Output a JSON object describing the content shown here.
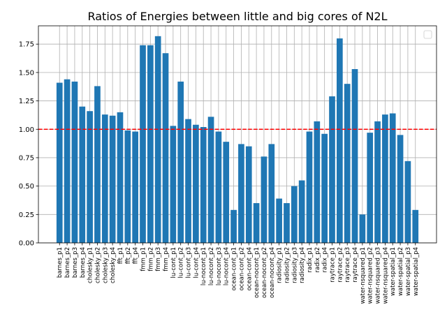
{
  "chart_data": {
    "type": "bar",
    "title": "Ratios of Energies between little and big cores of N2L",
    "categories": [
      "barnes_p1",
      "barnes_p2",
      "barnes_p3",
      "barnes_p4",
      "cholesky_p1",
      "cholesky_p2",
      "cholesky_p3",
      "cholesky_p4",
      "fft_p1",
      "fft_p2",
      "fft_p4",
      "fmm_p1",
      "fmm_p2",
      "fmm_p3",
      "fmm_p4",
      "lu-cont_p1",
      "lu-cont_p2",
      "lu-cont_p3",
      "lu-cont_p4",
      "lu-nocont_p1",
      "lu-nocont_p2",
      "lu-nocont_p3",
      "lu-nocont_p4",
      "ocean-cont_p1",
      "ocean-cont_p2",
      "ocean-cont_p4",
      "ocean-nocont_p1",
      "ocean-nocont_p2",
      "ocean-nocont_p4",
      "radiosity_p1",
      "radiosity_p2",
      "radiosity_p3",
      "radiosity_p4",
      "radix_p1",
      "radix_p2",
      "radix_p4",
      "raytrace_p1",
      "raytrace_p2",
      "raytrace_p3",
      "raytrace_p4",
      "water-nsquared_p1",
      "water-nsquared_p2",
      "water-nsquared_p3",
      "water-nsquared_p4",
      "water-spatial_p1",
      "water-spatial_p2",
      "water-spatial_p3",
      "water-spatial_p4"
    ],
    "values": [
      1.41,
      1.44,
      1.42,
      1.2,
      1.16,
      1.38,
      1.13,
      1.12,
      1.15,
      0.99,
      0.98,
      1.74,
      1.74,
      1.82,
      1.67,
      1.03,
      1.42,
      1.09,
      1.04,
      1.02,
      1.11,
      0.98,
      0.89,
      0.29,
      0.87,
      0.85,
      0.35,
      0.76,
      0.87,
      0.39,
      0.35,
      0.5,
      0.55,
      0.98,
      1.07,
      0.96,
      1.29,
      1.8,
      1.4,
      1.53,
      0.25,
      0.97,
      1.07,
      1.13,
      1.14,
      0.95,
      0.72,
      0.29
    ],
    "color": "#1f77b4",
    "reference_line": {
      "value": 1.0,
      "color": "#ff0000"
    },
    "ylim": [
      0,
      1.911
    ],
    "yticks": [
      {
        "value": 0,
        "label": "0.00"
      },
      {
        "value": 0.25,
        "label": "0.25"
      },
      {
        "value": 0.5,
        "label": "0.50"
      },
      {
        "value": 0.75,
        "label": "0.75"
      },
      {
        "value": 1,
        "label": "1.00"
      },
      {
        "value": 1.25,
        "label": "1.25"
      },
      {
        "value": 1.5,
        "label": "1.50"
      },
      {
        "value": 1.75,
        "label": "1.75"
      }
    ],
    "grid": true,
    "legend": "upper right"
  }
}
